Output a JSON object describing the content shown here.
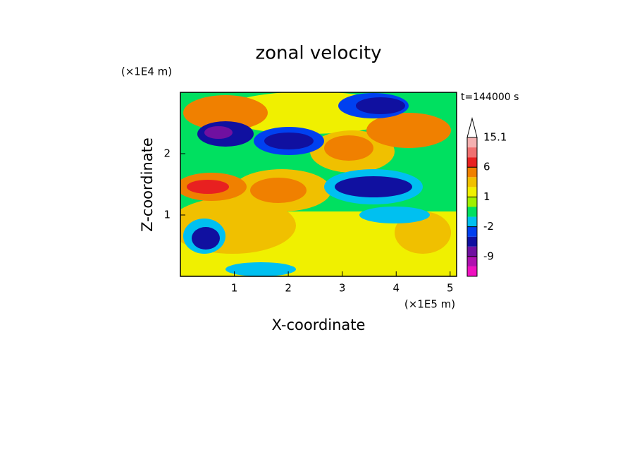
{
  "chart_data": {
    "type": "contour",
    "title": "zonal velocity",
    "x_label": "X-coordinate",
    "y_label": "Z-coordinate",
    "x_unit": "(×1E5 m)",
    "y_unit": "(×1E4 m)",
    "time_label": "t=144000 s",
    "xlim": [
      0,
      5.12
    ],
    "ylim": [
      0,
      3
    ],
    "xticks": [
      1,
      2,
      3,
      4,
      5
    ],
    "yticks": [
      1,
      2
    ],
    "colorbar": {
      "boundaries": [
        -15,
        -12,
        -9,
        -7,
        -5,
        -2,
        -1,
        0,
        1,
        2,
        3,
        6,
        9,
        12,
        15.1
      ],
      "colors": [
        "#f010c0",
        "#b010b0",
        "#7010a0",
        "#1010a0",
        "#0040f0",
        "#00c0f0",
        "#00e060",
        "#a0f000",
        "#f0f000",
        "#f0c000",
        "#f08000",
        "#e82020",
        "#f07070",
        "#f4b0b0"
      ],
      "ticks": [
        -9,
        -2,
        1,
        6,
        15.1
      ]
    }
  }
}
